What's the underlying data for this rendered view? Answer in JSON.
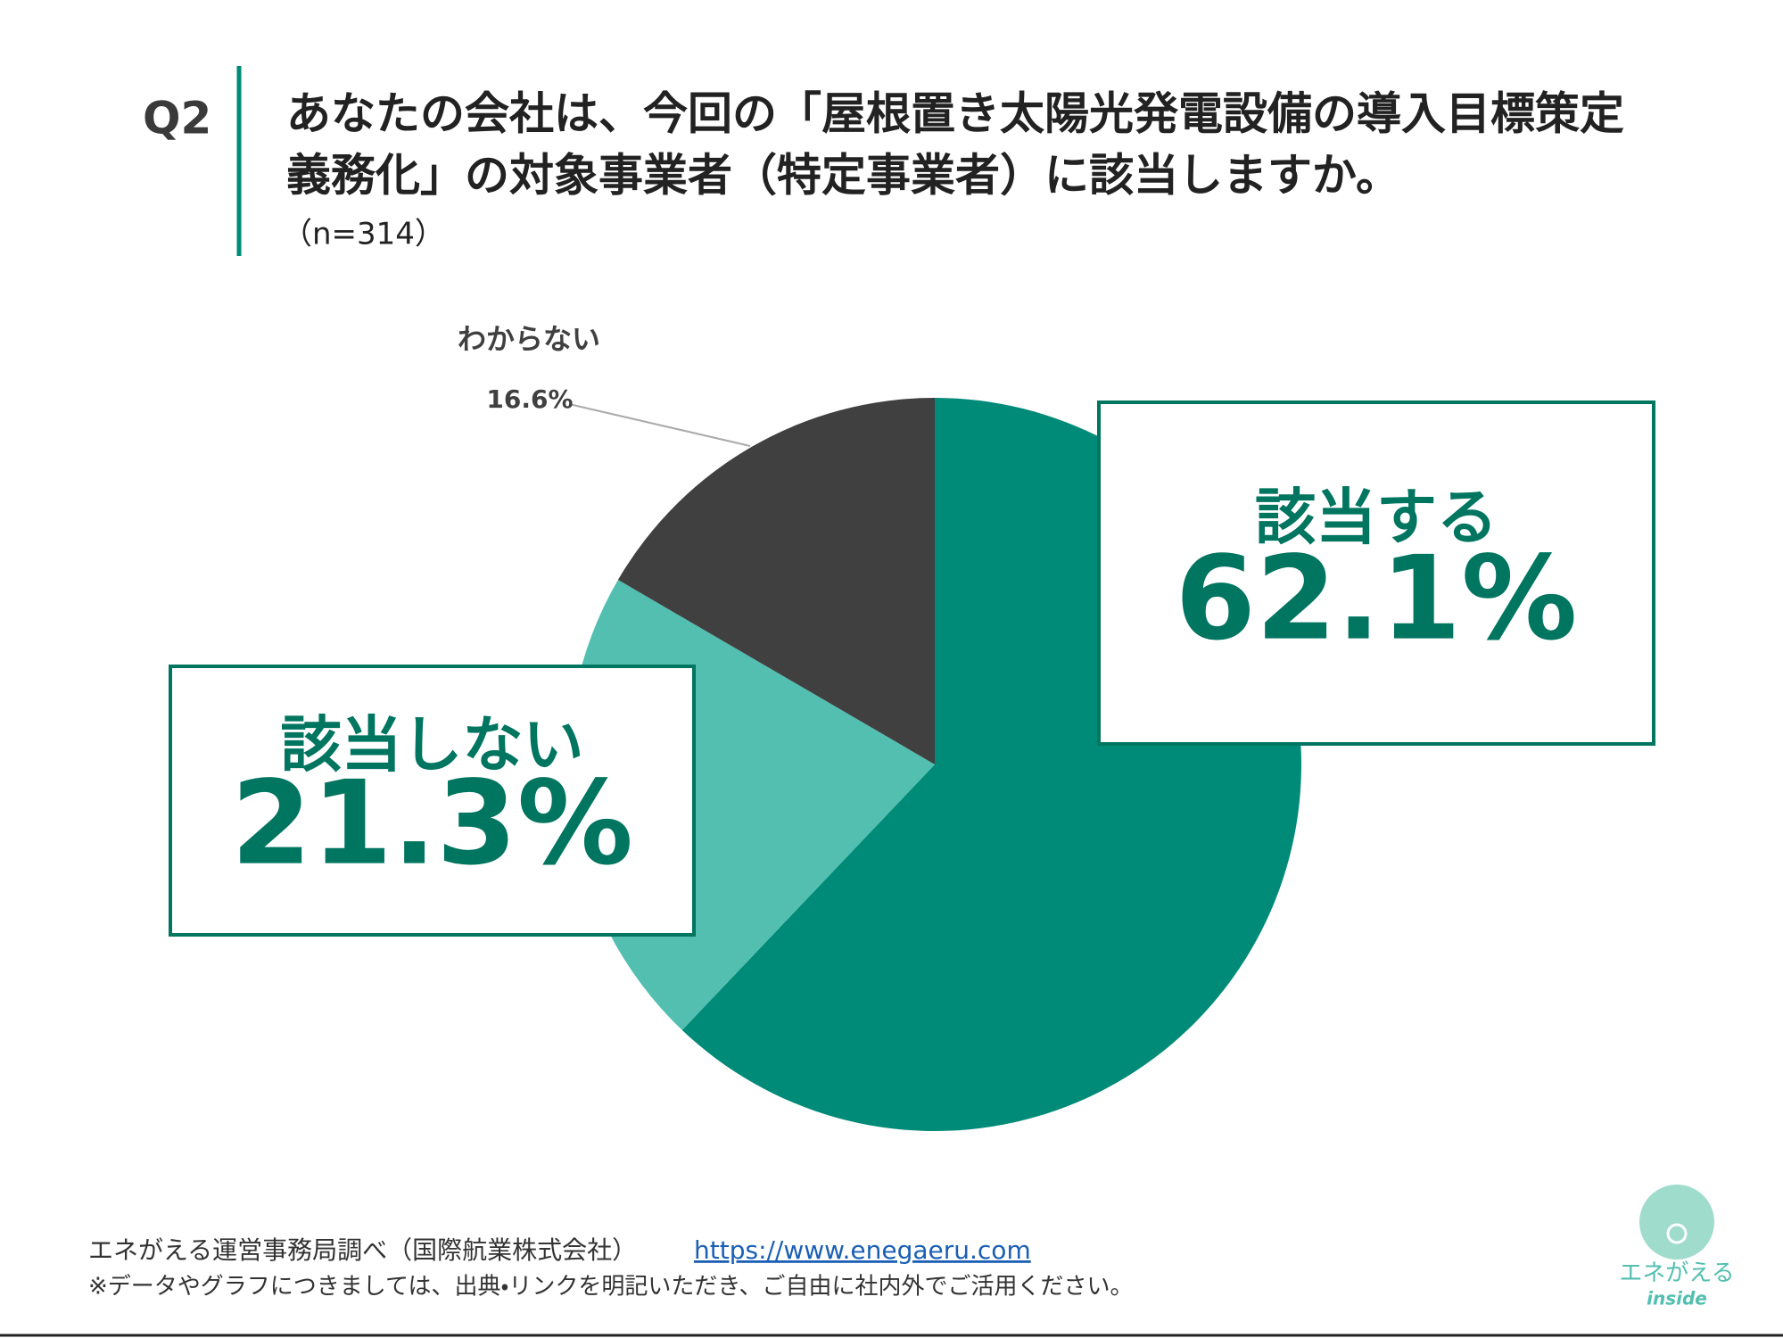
{
  "header": {
    "label": "Q2",
    "title": [
      "あなたの会社は、今回の「屋根置き太陽光発電設備の導入目標策定",
      "義務化」の対象事業者（特定事業者）に該当しますか。"
    ],
    "sample": "（n=314）"
  },
  "chart_data": {
    "type": "pie",
    "categories": [
      "該当する",
      "該当しない",
      "わからない"
    ],
    "values": [
      62.1,
      21.3,
      16.6
    ],
    "value_labels": [
      "62.1%",
      "21.3%",
      "16.6%"
    ],
    "colors": [
      "#008a78",
      "#52bfb0",
      "#404040"
    ]
  },
  "footer": {
    "source": "エネがえる運営事務局調べ（国際航業株式会社）",
    "url": "https://www.enegaeru.com",
    "note": "※データやグラフにつきましては、出典・リンクを明記いただき、ご自由に社内外でご活用ください。"
  },
  "logo": {
    "name": "エネがえる",
    "sub": "inside"
  }
}
